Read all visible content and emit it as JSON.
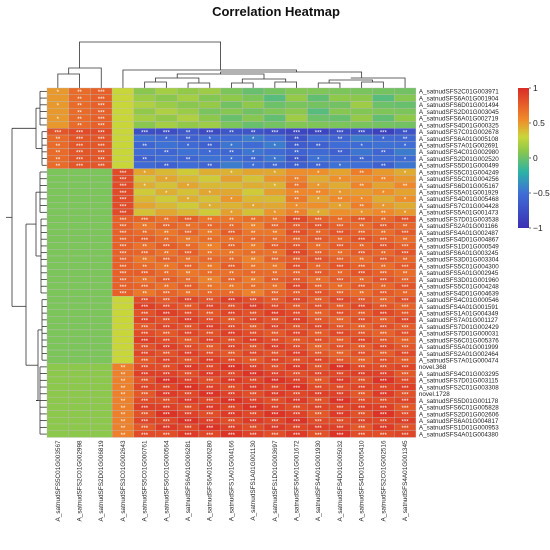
{
  "chart_data": {
    "type": "heatmap",
    "title": "Correlation Heatmap",
    "xlabel": "",
    "ylabel": "",
    "columns": [
      "A_satnudSFS5C01G003567",
      "A_satnudSFS2C01G002998",
      "A_satnudSFS2D01G006819",
      "A_satnudSFS3C01G002643",
      "A_satnudSFS5C01G000761",
      "A_satnudSFS6C01G000564",
      "A_satnudSFS6A01G006281",
      "A_satnudSFS6A01G006280",
      "A_satnudSFS1A01G004166",
      "A_satnudSFS1A01G001130",
      "A_satnudSFS1D01G003697",
      "A_satnudSFS6A01G001672",
      "A_satnudSFS4A01G001930",
      "A_satnudSFS4D01G005032",
      "A_satnudSFS4D01G005410",
      "A_satnudSFS2C01G002516",
      "A_satnudSFS4A01G001345"
    ],
    "rows": [
      "A_satnudSFS2C01G003971",
      "A_satnudSFS6A01G001904",
      "A_satnudSFS6D01G001494",
      "A_satnudSFS2D01G003045",
      "A_satnudSFS6A01G002719",
      "A_satnudSFS4D01G000325",
      "A_satnudSFS7C01G002678",
      "A_satnudSFS6A01G005108",
      "A_satnudSFS7A01G002691",
      "A_satnudSFS4C01G002980",
      "A_satnudSFS2D01G002520",
      "A_satnudSFS5D01G000499",
      "A_satnudSFS5C01G004249",
      "A_satnudSFS5C01G004256",
      "A_satnudSFS6D01G005167",
      "A_satnudSFS5A01G001929",
      "A_satnudSFS4D01G005468",
      "A_satnudSFS7C01G004428",
      "A_satnudSFS5A01G001473",
      "A_satnudSFS7D01G003538",
      "A_satnudSFS2A01G001166",
      "A_satnudSFS4A01G002487",
      "A_satnudSFS4D01G004867",
      "A_satnudSFS1D01G000549",
      "A_satnudSFS6A01G003245",
      "A_satnudSFS3D01G003304",
      "A_satnudSFS5C01G004300",
      "A_satnudSFS5A01G002945",
      "A_satnudSFS3D01G001960",
      "A_satnudSFS5C01G004248",
      "A_satnudSFS4D01G004639",
      "A_satnudSFS4C01G000546",
      "A_satnudSFS4A01G001591",
      "A_satnudSFS1A01G004349",
      "A_satnudSFS7A01G001127",
      "A_satnudSFS7D01G002429",
      "A_satnudSFS7D01G000031",
      "A_satnudSFS6C01G005376",
      "A_satnudSFS5A01G001999",
      "A_satnudSFS2A01G002464",
      "A_satnudSFS7A01G000474",
      "novel.368",
      "A_satnudSFS4C01G003295",
      "A_satnudSFS7D01G003115",
      "A_satnudSFS2C01G003308",
      "novel.1728",
      "A_satnudSFS5D01G001178",
      "A_satnudSFS6C01G005828",
      "A_satnudSFS2D01G002606",
      "A_satnudSFS6A01G004817",
      "A_satnudSFS1D01G000953",
      "A_satnudSFS4A01G004380"
    ],
    "row_groups": [
      {
        "rows": [
          0,
          5
        ],
        "left": [
          0.5,
          0.7,
          0.75
        ],
        "col3": 0.3,
        "right": [
          0.15,
          0.15,
          0.15,
          0.1,
          0.05,
          0.05,
          0.0,
          0.1,
          0.0,
          0.05,
          0.1,
          0.0,
          0.05
        ]
      },
      {
        "rows": [
          6,
          6
        ],
        "left": [
          0.8,
          0.85,
          0.85
        ],
        "col3": 0.3,
        "right": [
          -0.75,
          -0.7,
          -0.7,
          -0.75,
          -0.75,
          -0.7,
          -0.7,
          -0.85,
          -0.8,
          -0.8,
          -0.75,
          -0.8,
          -0.75
        ]
      },
      {
        "rows": [
          7,
          11
        ],
        "left": [
          0.7,
          0.8,
          0.8
        ],
        "col3": 0.3,
        "right": [
          -0.55,
          -0.55,
          -0.55,
          -0.55,
          -0.5,
          -0.5,
          -0.5,
          -0.65,
          -0.55,
          -0.55,
          -0.5,
          -0.55,
          -0.5
        ]
      },
      {
        "rows": [
          12,
          18
        ],
        "left": [
          0.05,
          0.05,
          0.05
        ],
        "col3": 0.85,
        "right": [
          0.4,
          0.4,
          0.4,
          0.4,
          0.45,
          0.4,
          0.45,
          0.6,
          0.5,
          0.5,
          0.55,
          0.5,
          0.5
        ]
      },
      {
        "rows": [
          19,
          30
        ],
        "left": [
          0.05,
          0.05,
          0.05
        ],
        "col3": 0.75,
        "right": [
          0.7,
          0.7,
          0.7,
          0.65,
          0.7,
          0.65,
          0.7,
          0.8,
          0.75,
          0.75,
          0.75,
          0.75,
          0.75
        ]
      },
      {
        "rows": [
          31,
          40
        ],
        "left": [
          0.05,
          0.05,
          0.05
        ],
        "col3": 0.3,
        "right": [
          0.85,
          0.85,
          0.85,
          0.85,
          0.85,
          0.85,
          0.85,
          0.85,
          0.8,
          0.8,
          0.8,
          0.8,
          0.8
        ]
      },
      {
        "rows": [
          41,
          51
        ],
        "left": [
          0.1,
          0.1,
          0.1
        ],
        "col3": 0.6,
        "right": [
          0.85,
          0.9,
          0.9,
          0.9,
          0.9,
          0.9,
          0.9,
          0.9,
          0.85,
          0.9,
          0.85,
          0.9,
          0.85
        ]
      }
    ],
    "significance_marks": [
      "*",
      "**",
      "***"
    ],
    "colorbar": {
      "min": -1,
      "max": 1,
      "ticks": [
        1,
        0.5,
        0,
        -0.5,
        -1
      ],
      "tick_labels": [
        "1",
        "0.5",
        "0",
        "−0.5",
        "−1"
      ]
    },
    "colors": {
      "neg": "#3b2fb4",
      "mid_low": "#2bb3a6",
      "mid": "#c9d63a",
      "mid_high": "#f08a2a",
      "pos": "#d92c26"
    },
    "dendrogram_column_top_split": [
      3,
      14
    ],
    "dendrogram_row_top_split": [
      12,
      40
    ]
  }
}
